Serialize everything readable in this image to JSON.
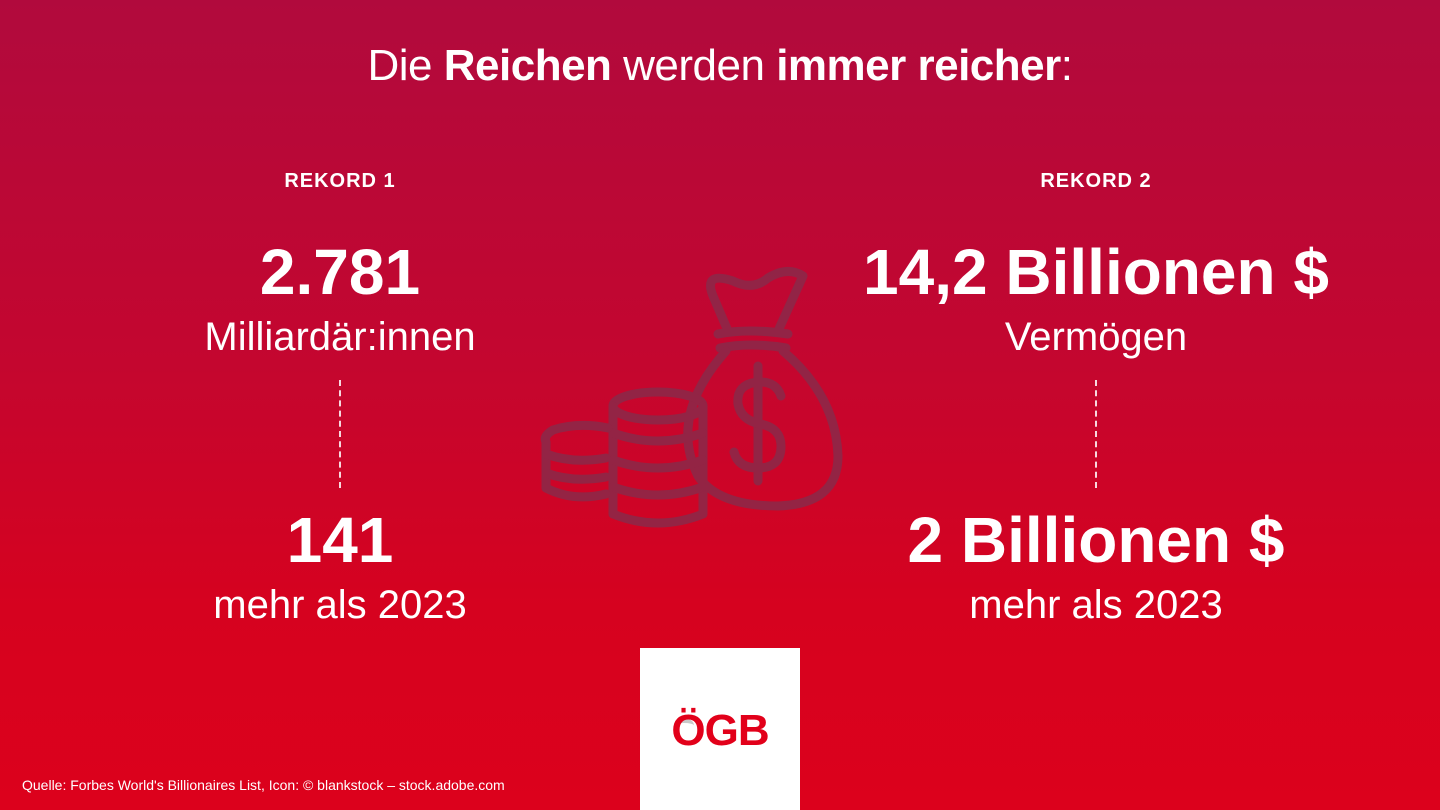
{
  "headline": {
    "part1": "Die ",
    "bold1": "Reichen",
    "part2": " werden ",
    "bold2": "immer reicher",
    "part3": ":"
  },
  "records": [
    {
      "label": "REKORD 1",
      "value": "2.781",
      "value_label": "Milliardär:innen",
      "delta": "141",
      "delta_label": "mehr als 2023"
    },
    {
      "label": "REKORD 2",
      "value": "14,2 Billionen $",
      "value_label": "Vermögen",
      "delta": "2 Billionen $",
      "delta_label": "mehr als 2023"
    }
  ],
  "icon": "money-bag-and-coins-icon",
  "logo": {
    "text": "ÖGB"
  },
  "source": "Quelle: Forbes World's Billionaires List, Icon: © blankstock – stock.adobe.com",
  "colors": {
    "background_top": "#b10a3d",
    "background_bottom": "#dc011c",
    "text": "#ffffff",
    "icon_stroke": "#8a2a4a",
    "logo_red": "#e2001a"
  }
}
